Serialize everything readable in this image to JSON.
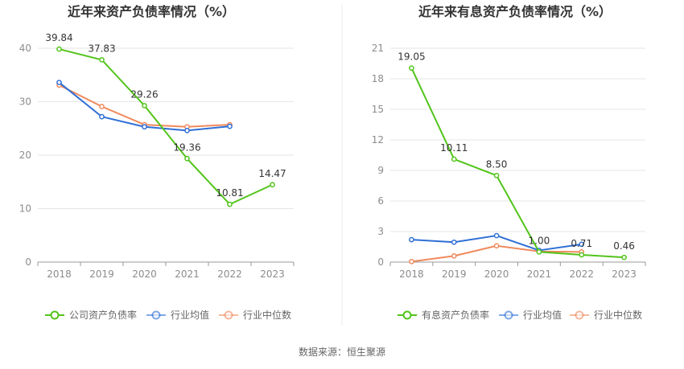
{
  "chart_data": [
    {
      "type": "line",
      "title": "近年来资产负债率情况（%）",
      "categories": [
        "2018",
        "2019",
        "2020",
        "2021",
        "2022",
        "2023"
      ],
      "ylim": [
        0,
        40
      ],
      "yticks": [
        0,
        10,
        20,
        30,
        40
      ],
      "grid": true,
      "legend_position": "bottom",
      "series": [
        {
          "name": "公司资产负债率",
          "color": "#52c41a",
          "values": [
            39.84,
            37.83,
            29.26,
            19.36,
            10.81,
            14.47
          ],
          "labels": [
            "39.84",
            "37.83",
            "29.26",
            "19.36",
            "10.81",
            "14.47"
          ]
        },
        {
          "name": "行业均值",
          "color": "#2f6fd6",
          "values": [
            33.6,
            27.2,
            25.3,
            24.6,
            25.4,
            null
          ]
        },
        {
          "name": "行业中位数",
          "color": "#f08a5d",
          "values": [
            33.1,
            29.1,
            25.7,
            25.3,
            25.7,
            null
          ]
        }
      ]
    },
    {
      "type": "line",
      "title": "近年来有息资产负债率情况（%）",
      "categories": [
        "2018",
        "2019",
        "2020",
        "2021",
        "2022",
        "2023"
      ],
      "ylim": [
        0,
        21
      ],
      "yticks": [
        0,
        3,
        6,
        9,
        12,
        15,
        18,
        21
      ],
      "grid": true,
      "legend_position": "bottom",
      "series": [
        {
          "name": "有息资产负债率",
          "color": "#52c41a",
          "values": [
            19.05,
            10.11,
            8.5,
            1.0,
            0.71,
            0.46
          ],
          "labels": [
            "19.05",
            "10.11",
            "8.50",
            "1.00",
            "0.71",
            "0.46"
          ]
        },
        {
          "name": "行业均值",
          "color": "#2f6fd6",
          "values": [
            2.2,
            1.95,
            2.6,
            1.15,
            1.75,
            null
          ]
        },
        {
          "name": "行业中位数",
          "color": "#f08a5d",
          "values": [
            0.05,
            0.6,
            1.6,
            1.05,
            1.0,
            null
          ]
        }
      ]
    }
  ],
  "footer": {
    "source": "数据来源：恒生聚源"
  }
}
